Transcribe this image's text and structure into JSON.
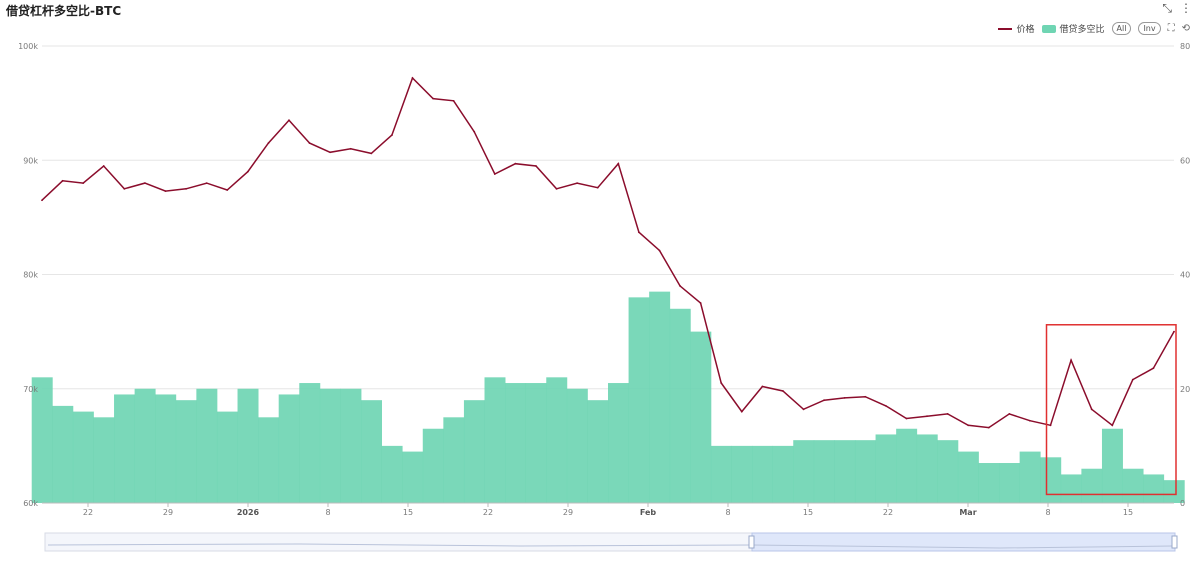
{
  "title": "借贷杠杆多空比-BTC",
  "toolbar": {
    "expand_icon": "expand-icon",
    "more_icon": "more-icon",
    "all_label": "All",
    "inv_label": "Inv",
    "zoom_icon": "zoom-select-icon",
    "reset_icon": "zoom-reset-icon"
  },
  "colors": {
    "price": "#8b0d2c",
    "ratio": "#6fd5b3",
    "grid": "#e6e6e6",
    "highlight": "#e03030"
  },
  "chart_data": {
    "type": "line",
    "x_tick_labels": [
      "22",
      "29",
      "2026",
      "8",
      "15",
      "22",
      "29",
      "Feb",
      "8",
      "15",
      "22",
      "Mar",
      "8",
      "15"
    ],
    "y_left": {
      "ticks": [
        "60k",
        "70k",
        "80k",
        "90k",
        "100k"
      ],
      "range": [
        60000,
        100000
      ]
    },
    "y_right": {
      "ticks": [
        "0",
        "20",
        "40",
        "60",
        "80"
      ],
      "range": [
        0,
        80
      ]
    },
    "series": [
      {
        "name": "价格",
        "type": "line",
        "axis": "left",
        "x": [
          0,
          2,
          4,
          6,
          8,
          10,
          12,
          14,
          16,
          18,
          20,
          22,
          24,
          26,
          28,
          30,
          32,
          34,
          36,
          38,
          40,
          42,
          44,
          46,
          48,
          50,
          52,
          54,
          56,
          58,
          60,
          62,
          64,
          66,
          68,
          70,
          72,
          74,
          76,
          78,
          80,
          82,
          84,
          86,
          88,
          90,
          92,
          94,
          96,
          98,
          100,
          102,
          104,
          106,
          108,
          110
        ],
        "values": [
          86500,
          88200,
          88000,
          89500,
          87500,
          88000,
          87300,
          87500,
          88000,
          87400,
          89000,
          91500,
          93500,
          91500,
          90700,
          91000,
          90600,
          92200,
          97200,
          95400,
          95200,
          92500,
          88800,
          89700,
          89500,
          87500,
          88000,
          87600,
          89700,
          83700,
          82100,
          79000,
          77500,
          70500,
          68000,
          70200,
          69800,
          68200,
          69000,
          69200,
          69300,
          68500,
          67400,
          67600,
          67800,
          66800,
          66600,
          67800,
          67200,
          66800,
          72500,
          68200,
          66800,
          70800,
          71800,
          75000
        ]
      },
      {
        "name": "借贷多空比",
        "type": "bar",
        "axis": "right",
        "x": [
          0,
          2,
          4,
          6,
          8,
          10,
          12,
          14,
          16,
          18,
          20,
          22,
          24,
          26,
          28,
          30,
          32,
          34,
          36,
          38,
          40,
          42,
          44,
          46,
          48,
          50,
          52,
          54,
          56,
          58,
          60,
          62,
          64,
          66,
          68,
          70,
          72,
          74,
          76,
          78,
          80,
          82,
          84,
          86,
          88,
          90,
          92,
          94,
          96,
          98,
          100,
          102,
          104,
          106,
          108,
          110
        ],
        "values": [
          22,
          17,
          16,
          15,
          19,
          20,
          19,
          18,
          20,
          16,
          20,
          15,
          19,
          21,
          20,
          20,
          18,
          10,
          9,
          13,
          15,
          18,
          22,
          21,
          21,
          22,
          20,
          18,
          21,
          36,
          37,
          34,
          30,
          10,
          10,
          10,
          10,
          11,
          11,
          11,
          11,
          12,
          13,
          12,
          11,
          9,
          7,
          7,
          9,
          8,
          5,
          6,
          13,
          6,
          5,
          4
        ]
      }
    ],
    "annotation": "red highlight box around the last segment (15 onward)"
  }
}
